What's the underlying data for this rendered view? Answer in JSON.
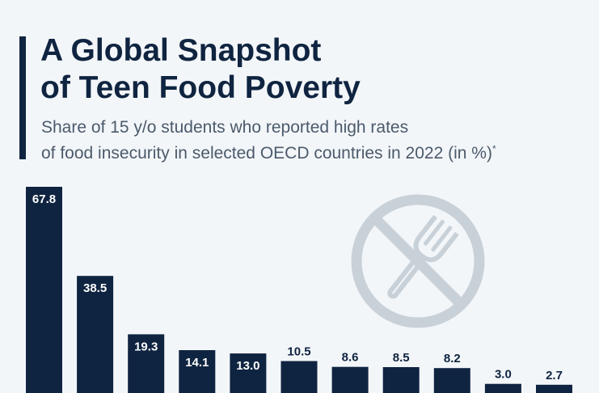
{
  "header": {
    "title_line1": "A Global Snapshot",
    "title_line2": "of Teen Food Poverty",
    "subtitle_line1": "Share of 15 y/o students who reported high rates",
    "subtitle_line2": "of food insecurity in selected OECD countries in 2022 (in %)",
    "subtitle_marker": "*"
  },
  "colors": {
    "bar": "#0f2440",
    "label_inside": "#ffffff",
    "label_above": "#0f2440",
    "icon": "#c9d1d8"
  },
  "icon": {
    "name": "no-food-icon"
  },
  "chart_data": {
    "type": "bar",
    "values": [
      67.8,
      38.5,
      19.3,
      14.1,
      13.0,
      10.5,
      8.6,
      8.5,
      8.2,
      3.0,
      2.7
    ],
    "labels": [
      "67.8",
      "38.5",
      "19.3",
      "14.1",
      "13.0",
      "10.5",
      "8.6",
      "8.5",
      "8.2",
      "3.0",
      "2.7"
    ],
    "grid": false
  }
}
